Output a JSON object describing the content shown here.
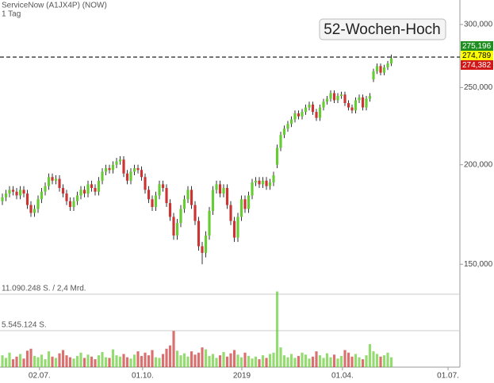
{
  "chart_data": {
    "type": "candlestick",
    "title": "ServiceNow (A1JX4P) (NOW)",
    "subtitle": "1 Tag",
    "annotation": "52-Wochen-Hoch",
    "high_line": 273000,
    "price_labels": [
      "275,196",
      "274,789",
      "274,382"
    ],
    "price_label_colors": [
      "#1f8f1f",
      "#ffff00",
      "#d01818"
    ],
    "price_label_text_colors": [
      "#ffffff",
      "#000000",
      "#ffffff"
    ],
    "log_scale": true,
    "up_color": "#66cc33",
    "down_color": "#cc3333",
    "ylim": [
      146000,
      322000
    ],
    "yticks": [
      {
        "value": 150000,
        "label": "150,000"
      },
      {
        "value": 200000,
        "label": "200,000"
      },
      {
        "value": 250000,
        "label": "250,000"
      },
      {
        "value": 300000,
        "label": "300,000"
      }
    ],
    "xlim": [
      -0.67,
      128.22
    ],
    "xticks": [
      {
        "value": 10.4,
        "label": "02.07."
      },
      {
        "value": 39.3,
        "label": "01.10."
      },
      {
        "value": 67.1,
        "label": "2019"
      },
      {
        "value": 95.3,
        "label": "01.04."
      },
      {
        "value": 124.9,
        "label": "01.07."
      }
    ],
    "volume_ylim": [
      0,
      12054600
    ],
    "volume_yticks": [
      {
        "value": 5545124,
        "label": "5.545.124 S."
      },
      {
        "value": 11090248,
        "label": "11.090.248 S. / 2,4 Mrd."
      }
    ],
    "open": [
      180000,
      182000,
      184000,
      186000,
      185000,
      183000,
      186000,
      184000,
      178000,
      174000,
      176000,
      181000,
      185000,
      188000,
      193000,
      191000,
      192000,
      187000,
      184000,
      180000,
      177000,
      180000,
      183000,
      186000,
      184000,
      189000,
      187000,
      185000,
      191000,
      196000,
      198000,
      197000,
      200000,
      202000,
      203000,
      195000,
      191000,
      196000,
      198000,
      197000,
      193000,
      186000,
      181000,
      177000,
      183000,
      189000,
      187000,
      179000,
      172000,
      163000,
      169000,
      176000,
      181000,
      186000,
      178000,
      170000,
      158000,
      155000,
      163000,
      175000,
      186000,
      189000,
      184000,
      187000,
      178000,
      170000,
      162000,
      172000,
      181000,
      176000,
      183000,
      190000,
      191000,
      189000,
      191000,
      188000,
      190000,
      200000,
      210000,
      218000,
      222000,
      225000,
      228000,
      232000,
      230000,
      233000,
      236000,
      238000,
      233000,
      229000,
      236000,
      240000,
      242000,
      246000,
      241000,
      244000,
      245000,
      239000,
      236000,
      234000,
      241000,
      243000,
      236000,
      242000,
      256000,
      262000,
      266000,
      261000,
      265000,
      268000
    ],
    "high": [
      184000,
      186000,
      188000,
      188000,
      187000,
      188000,
      188000,
      186000,
      180000,
      178000,
      183000,
      187000,
      190000,
      195000,
      195000,
      194000,
      194000,
      189000,
      186000,
      182000,
      182000,
      185000,
      188000,
      188000,
      191000,
      191000,
      189000,
      193000,
      198000,
      200000,
      200000,
      202000,
      204000,
      205000,
      205000,
      197000,
      198000,
      200000,
      200000,
      199000,
      195000,
      188000,
      183000,
      185000,
      191000,
      191000,
      189000,
      181000,
      174000,
      171000,
      178000,
      183000,
      188000,
      188000,
      180000,
      172000,
      160000,
      165000,
      177000,
      188000,
      191000,
      191000,
      189000,
      189000,
      180000,
      172000,
      174000,
      183000,
      183000,
      185000,
      192000,
      193000,
      193000,
      193000,
      193000,
      192000,
      196000,
      212000,
      220000,
      224000,
      227000,
      230000,
      234000,
      234000,
      235000,
      238000,
      240000,
      240000,
      235000,
      238000,
      242000,
      244000,
      248000,
      248000,
      246000,
      247000,
      247000,
      241000,
      238000,
      243000,
      245000,
      245000,
      244000,
      246000,
      264000,
      268000,
      268000,
      267000,
      270000,
      275000
    ],
    "low": [
      178000,
      180000,
      182000,
      183000,
      181000,
      181000,
      182000,
      176000,
      172000,
      172000,
      174000,
      179000,
      183000,
      186000,
      189000,
      189000,
      185000,
      182000,
      178000,
      175000,
      175000,
      178000,
      181000,
      182000,
      182000,
      185000,
      183000,
      183000,
      189000,
      194000,
      195000,
      195000,
      198000,
      200000,
      193000,
      189000,
      189000,
      194000,
      195000,
      191000,
      184000,
      179000,
      175000,
      175000,
      181000,
      185000,
      177000,
      170000,
      161000,
      161000,
      167000,
      174000,
      179000,
      176000,
      168000,
      156000,
      150000,
      153000,
      161000,
      173000,
      184000,
      182000,
      182000,
      176000,
      168000,
      160000,
      160000,
      170000,
      174000,
      174000,
      181000,
      188000,
      187000,
      187000,
      186000,
      186000,
      188000,
      198000,
      208000,
      216000,
      220000,
      223000,
      226000,
      228000,
      228000,
      231000,
      234000,
      231000,
      227000,
      227000,
      234000,
      238000,
      240000,
      239000,
      239000,
      242000,
      237000,
      234000,
      232000,
      232000,
      239000,
      234000,
      234000,
      240000,
      254000,
      260000,
      259000,
      259000,
      263000,
      266000
    ],
    "close": [
      182000,
      184000,
      186000,
      185000,
      183000,
      186000,
      184000,
      178000,
      174000,
      176000,
      181000,
      185000,
      188000,
      193000,
      191000,
      192000,
      187000,
      184000,
      180000,
      177000,
      180000,
      183000,
      186000,
      184000,
      189000,
      187000,
      185000,
      191000,
      196000,
      198000,
      197000,
      200000,
      202000,
      203000,
      195000,
      191000,
      196000,
      198000,
      197000,
      193000,
      186000,
      181000,
      177000,
      183000,
      189000,
      187000,
      179000,
      172000,
      163000,
      169000,
      176000,
      181000,
      186000,
      178000,
      170000,
      158000,
      155000,
      163000,
      175000,
      186000,
      189000,
      184000,
      187000,
      178000,
      170000,
      162000,
      172000,
      181000,
      176000,
      183000,
      190000,
      191000,
      189000,
      191000,
      188000,
      190000,
      194000,
      210000,
      218000,
      222000,
      225000,
      228000,
      232000,
      230000,
      233000,
      236000,
      238000,
      233000,
      229000,
      236000,
      240000,
      242000,
      246000,
      241000,
      244000,
      245000,
      239000,
      236000,
      234000,
      241000,
      243000,
      236000,
      242000,
      244000,
      262000,
      266000,
      261000,
      265000,
      268000,
      272000
    ],
    "volume": [
      1800000,
      1400000,
      2200000,
      1200000,
      1600000,
      2000000,
      1300000,
      2500000,
      2800000,
      1700000,
      1500000,
      1900000,
      1200000,
      2400000,
      1600000,
      1400000,
      2100000,
      2600000,
      1800000,
      1500000,
      1300000,
      1700000,
      2200000,
      1400000,
      1900000,
      1600000,
      1200000,
      1800000,
      2300000,
      1500000,
      1400000,
      2700000,
      1800000,
      1600000,
      2000000,
      1500000,
      1300000,
      1900000,
      2400000,
      1700000,
      2200000,
      1800000,
      2600000,
      1500000,
      1400000,
      2000000,
      2800000,
      3300000,
      5500000,
      2500000,
      1800000,
      2100000,
      1600000,
      2400000,
      1900000,
      2200000,
      3000000,
      2700000,
      1700000,
      2000000,
      1400000,
      1800000,
      2300000,
      1600000,
      2100000,
      2600000,
      1900000,
      1500000,
      2200000,
      1700000,
      1300000,
      1600000,
      1200000,
      1800000,
      1400000,
      2000000,
      2200000,
      11500000,
      3000000,
      1800000,
      1500000,
      2000000,
      1400000,
      1700000,
      2200000,
      1900000,
      1300000,
      1600000,
      2400000,
      1800000,
      1400000,
      2100000,
      1500000,
      1900000,
      1300000,
      1700000,
      2600000,
      2200000,
      1600000,
      2000000,
      1500000,
      1200000,
      1800000,
      3500000,
      2400000,
      2000000,
      1600000,
      1800000,
      2200000,
      1500000
    ]
  }
}
